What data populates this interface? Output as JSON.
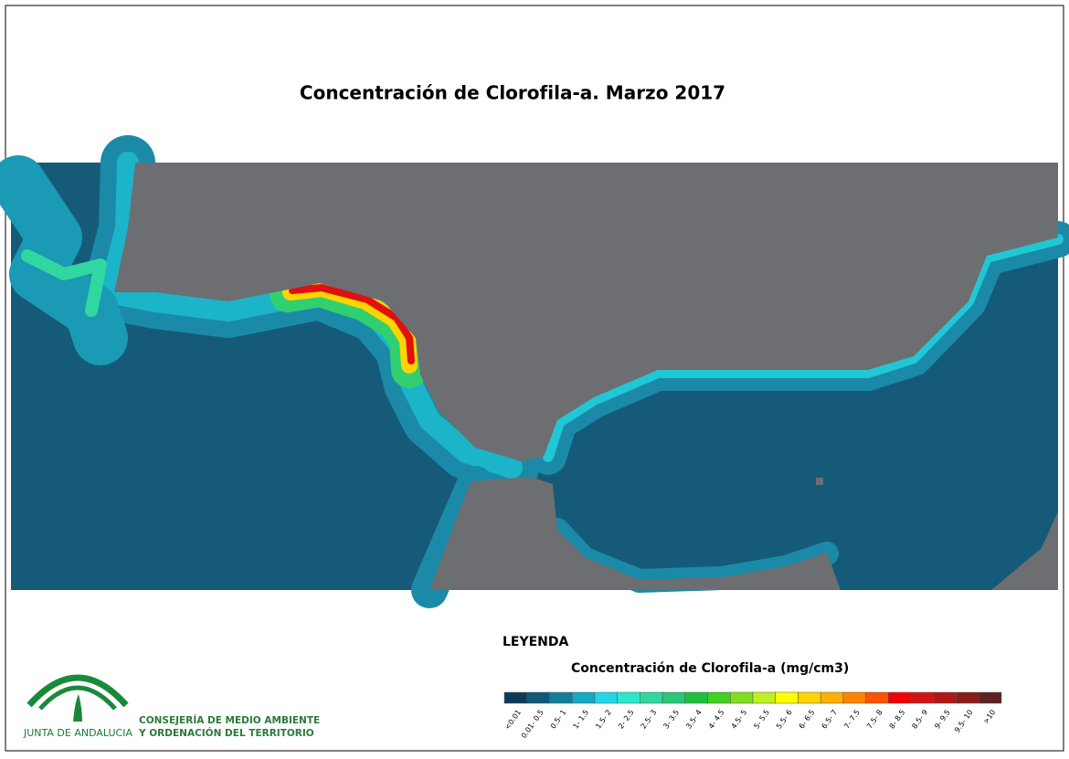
{
  "title": "Concentración de Clorofila-a. Marzo 2017",
  "legend": {
    "heading": "LEYENDA",
    "title": "Concentración de Clorofila-a (mg/cm3)",
    "classes": [
      {
        "label": "<0.01",
        "color": "#0b3b58"
      },
      {
        "label": "0.01- 0.5",
        "color": "#0f5a78"
      },
      {
        "label": "0.5- 1",
        "color": "#127f9a"
      },
      {
        "label": "1- 1.5",
        "color": "#17a9c2"
      },
      {
        "label": "1.5- 2",
        "color": "#22d6e6"
      },
      {
        "label": "2- 2.5",
        "color": "#2ae8c8"
      },
      {
        "label": "2.5- 3",
        "color": "#30d8a0"
      },
      {
        "label": "3- 3.5",
        "color": "#28c878"
      },
      {
        "label": "3.5- 4",
        "color": "#1fc040"
      },
      {
        "label": "4- 4.5",
        "color": "#40d020"
      },
      {
        "label": "4.5- 5",
        "color": "#80e020"
      },
      {
        "label": "5- 5.5",
        "color": "#c0f020"
      },
      {
        "label": "5.5- 6",
        "color": "#ffff00"
      },
      {
        "label": "6- 6.5",
        "color": "#ffd400"
      },
      {
        "label": "6.5- 7",
        "color": "#ffb000"
      },
      {
        "label": "7- 7.5",
        "color": "#ff8400"
      },
      {
        "label": "7.5- 8",
        "color": "#ff5200"
      },
      {
        "label": "8- 8.5",
        "color": "#f00000"
      },
      {
        "label": "8.5- 9",
        "color": "#d01414"
      },
      {
        "label": "9- 9.5",
        "color": "#b01818"
      },
      {
        "label": "9.5- 10",
        "color": "#8c1c1c"
      },
      {
        "label": ">10",
        "color": "#5e2020"
      }
    ]
  },
  "logo": {
    "name": "JUNTA DE ANDALUCIA",
    "department": [
      "CONSEJERÍA DE MEDIO AMBIENTE",
      "Y ORDENACIÓN DEL TERRITORIO"
    ]
  }
}
